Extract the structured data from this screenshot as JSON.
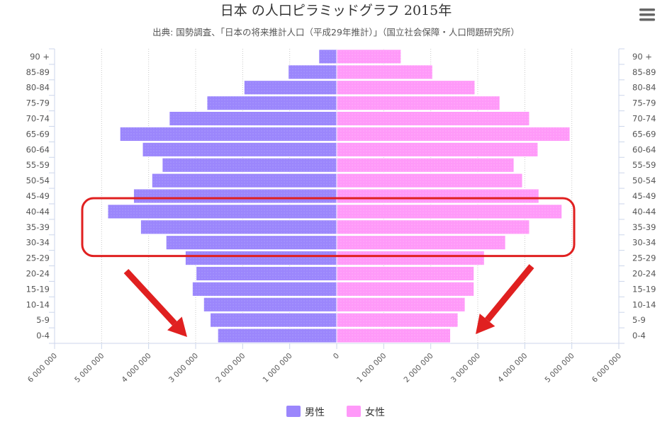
{
  "chart_data": {
    "type": "bar",
    "orientation": "horizontal-pyramid",
    "title": "日本 の人口ピラミッドグラフ 2015年",
    "subtitle": "出典: 国勢調査、「日本の将来推計人口（平成29年推計）」（国立社会保障・人口問題研究所）",
    "categories": [
      "90 +",
      "85-89",
      "80-84",
      "75-79",
      "70-74",
      "65-69",
      "60-64",
      "55-59",
      "50-54",
      "45-49",
      "40-44",
      "35-39",
      "30-34",
      "25-29",
      "20-24",
      "15-19",
      "10-14",
      "5-9",
      "0-4"
    ],
    "series": [
      {
        "name": "男性",
        "color": "#9b86fc",
        "values": [
          380000,
          1030000,
          1970000,
          2760000,
          3560000,
          4610000,
          4130000,
          3710000,
          3930000,
          4320000,
          4870000,
          4170000,
          3630000,
          3220000,
          2990000,
          3070000,
          2830000,
          2690000,
          2530000
        ]
      },
      {
        "name": "女性",
        "color": "#ff99f9",
        "values": [
          1370000,
          2040000,
          2940000,
          3470000,
          4100000,
          4960000,
          4280000,
          3770000,
          3950000,
          4300000,
          4790000,
          4100000,
          3590000,
          3140000,
          2920000,
          2920000,
          2730000,
          2580000,
          2420000
        ]
      }
    ],
    "xlim": [
      -6000000,
      6000000
    ],
    "xticks": [
      -6000000,
      -5000000,
      -4000000,
      -3000000,
      -2000000,
      -1000000,
      0,
      1000000,
      2000000,
      3000000,
      4000000,
      5000000,
      6000000
    ],
    "tick_labels": [
      "6 000 000",
      "5 000 000",
      "4 000 000",
      "3 000 000",
      "2 000 000",
      "1 000 000",
      "0",
      "1 000 000",
      "2 000 000",
      "3 000 000",
      "4 000 000",
      "5 000 000",
      "6 000 000"
    ],
    "grid": true,
    "legend_position": "bottom-center",
    "annotations": {
      "highlight_rows": [
        "40-44",
        "35-39",
        "30-34"
      ],
      "highlight_color": "#e02020",
      "arrow_color": "#e02020",
      "arrow_count": 2
    }
  },
  "menu": {
    "icon": "hamburger-menu-icon"
  }
}
